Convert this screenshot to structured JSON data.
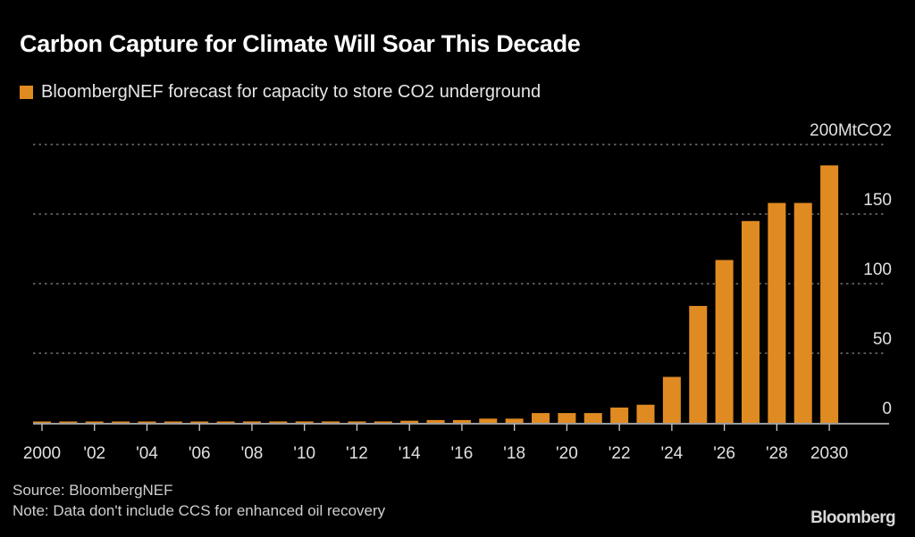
{
  "title": "Carbon Capture for Climate Will Soar This Decade",
  "legend": {
    "label": "BloombergNEF forecast for capacity to store CO2 underground",
    "color": "#E08B22"
  },
  "footer": {
    "source": "Source: BloombergNEF",
    "note": "Note: Data don't include CCS for enhanced oil recovery"
  },
  "brand": "Bloomberg",
  "chart_data": {
    "type": "bar",
    "title": "Carbon Capture for Climate Will Soar This Decade",
    "xlabel": "",
    "ylabel": "MtCO2",
    "ylim": [
      0,
      200
    ],
    "yticks": [
      0,
      50,
      100,
      150,
      200
    ],
    "ytick_labels": [
      "0",
      "50",
      "100",
      "150",
      "200MtCO2"
    ],
    "y_axis_position": "right",
    "grid": true,
    "legend_position": "top-left",
    "series": [
      {
        "name": "BloombergNEF forecast for capacity to store CO2 underground",
        "color": "#E08B22"
      }
    ],
    "categories": [
      2000,
      2001,
      2002,
      2003,
      2004,
      2005,
      2006,
      2007,
      2008,
      2009,
      2010,
      2011,
      2012,
      2013,
      2014,
      2015,
      2016,
      2017,
      2018,
      2019,
      2020,
      2021,
      2022,
      2023,
      2024,
      2025,
      2026,
      2027,
      2028,
      2029,
      2030
    ],
    "values": [
      0.5,
      0.5,
      0.5,
      0.5,
      0.5,
      0.5,
      0.5,
      0.5,
      1,
      1,
      1,
      1,
      1,
      1,
      1.5,
      2,
      2,
      3,
      3,
      7,
      7,
      7,
      11,
      13,
      33,
      84,
      117,
      145,
      158,
      158,
      185
    ],
    "xtick_values": [
      2000,
      2002,
      2004,
      2006,
      2008,
      2010,
      2012,
      2014,
      2016,
      2018,
      2020,
      2022,
      2024,
      2026,
      2028,
      2030
    ],
    "xtick_labels": [
      "2000",
      "'02",
      "'04",
      "'06",
      "'08",
      "'10",
      "'12",
      "'14",
      "'16",
      "'18",
      "'20",
      "'22",
      "'24",
      "'26",
      "'28",
      "2030"
    ]
  }
}
